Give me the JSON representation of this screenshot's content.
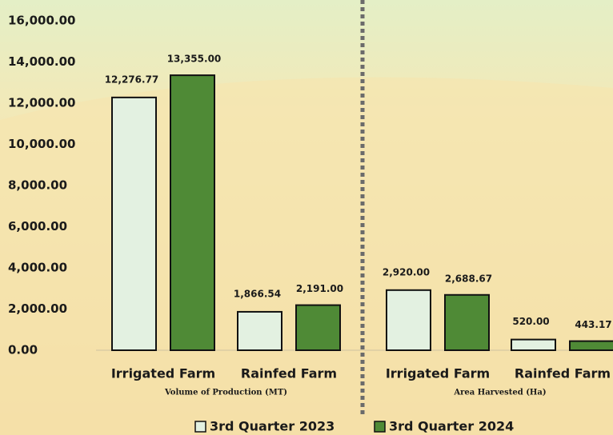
{
  "chart_data": {
    "type": "bar",
    "categories": [
      "Irrigated Farm",
      "Rainfed Farm",
      "Irrigated Farm",
      "Rainfed Farm"
    ],
    "groups": [
      "Volume of Production (MT)",
      "Area Harvested (Ha)"
    ],
    "series": [
      {
        "name": "3rd Quarter 2023",
        "color": "#e3f1e1",
        "values": [
          12276.77,
          1866.54,
          2920.0,
          520.0
        ],
        "value_labels": [
          "12,276.77",
          "1,866.54",
          "2,920.00",
          "520.00"
        ]
      },
      {
        "name": "3rd Quarter 2024",
        "color": "#4f8a36",
        "values": [
          13355.0,
          2191.0,
          2688.67,
          443.17
        ],
        "value_labels": [
          "13,355.00",
          "2,191.00",
          "2,688.67",
          "443.17"
        ]
      }
    ],
    "ylim": [
      0,
      16000
    ],
    "yticks": [
      {
        "value": 0,
        "label": "0.00"
      },
      {
        "value": 2000,
        "label": "2,000.00"
      },
      {
        "value": 4000,
        "label": "4,000.00"
      },
      {
        "value": 6000,
        "label": "6,000.00"
      },
      {
        "value": 8000,
        "label": "8,000.00"
      },
      {
        "value": 10000,
        "label": "10,000.00"
      },
      {
        "value": 12000,
        "label": "12,000.00"
      },
      {
        "value": 14000,
        "label": "14,000.00"
      },
      {
        "value": 16000,
        "label": "16,000.00"
      }
    ],
    "grid": false
  }
}
